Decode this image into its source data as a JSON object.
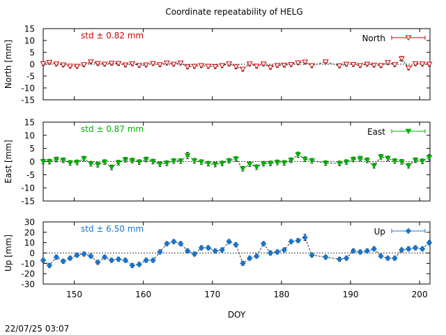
{
  "title": "Coordinate repeatability of HELG",
  "timestamp": "22/07/25 03:07",
  "chart_data": [
    {
      "type": "line",
      "panel": "north",
      "ylabel": "North [mm]",
      "ylim": [
        -15,
        15
      ],
      "yticks": [
        15,
        10,
        5,
        0,
        -5,
        -10,
        -15
      ],
      "xlim": [
        145.5,
        201.5
      ],
      "std_label": "std ± 0.82 mm",
      "legend": "North",
      "legend_position": "top-right",
      "color": "#d40000",
      "marker": "triangle-down-open",
      "x": [
        145.5,
        146.4,
        147.4,
        148.4,
        149.4,
        150.4,
        151.4,
        152.4,
        153.4,
        154.4,
        155.4,
        156.4,
        157.4,
        158.4,
        159.4,
        160.4,
        161.4,
        162.4,
        163.4,
        164.4,
        165.4,
        166.4,
        167.4,
        168.4,
        169.4,
        170.4,
        171.4,
        172.4,
        173.4,
        174.4,
        175.4,
        176.4,
        177.4,
        178.4,
        179.4,
        180.4,
        181.4,
        182.4,
        183.4,
        184.4,
        186.4,
        188.4,
        189.4,
        190.4,
        191.4,
        192.4,
        193.4,
        194.4,
        195.4,
        196.4,
        197.4,
        198.4,
        199.4,
        200.4,
        201.4
      ],
      "values": [
        0.2,
        0.8,
        0.1,
        -0.3,
        -0.8,
        -0.9,
        -0.2,
        1.0,
        0.3,
        0.0,
        0.4,
        0.3,
        -0.3,
        0.2,
        -0.5,
        -0.3,
        0.3,
        -0.2,
        0.5,
        0.0,
        0.5,
        -1.1,
        -0.9,
        -0.6,
        -0.9,
        -1.0,
        -0.6,
        0.1,
        -1.1,
        -2.1,
        0.1,
        -0.8,
        0.1,
        -1.3,
        -0.5,
        -0.4,
        -0.1,
        0.6,
        0.9,
        -0.6,
        1.0,
        -0.7,
        0.0,
        -0.1,
        -0.5,
        0.0,
        -0.4,
        -0.6,
        0.7,
        -0.2,
        2.3,
        -1.6,
        0.2,
        0.1,
        0.0
      ],
      "errors": [
        0.8,
        0.8,
        0.8,
        0.8,
        0.8,
        0.8,
        0.8,
        0.8,
        0.8,
        0.8,
        0.8,
        0.8,
        0.8,
        0.8,
        0.8,
        0.8,
        0.8,
        0.8,
        0.8,
        0.8,
        0.8,
        0.8,
        0.8,
        0.8,
        0.8,
        0.8,
        0.8,
        0.8,
        0.8,
        0.8,
        0.8,
        0.8,
        0.8,
        0.8,
        0.8,
        0.8,
        0.8,
        0.8,
        0.8,
        0.8,
        0.8,
        0.8,
        0.8,
        0.8,
        0.8,
        0.8,
        0.8,
        0.8,
        0.8,
        0.8,
        1.0,
        0.8,
        0.8,
        0.8,
        0.8
      ]
    },
    {
      "type": "line",
      "panel": "east",
      "ylabel": "East [mm]",
      "ylim": [
        -15,
        15
      ],
      "yticks": [
        15,
        10,
        5,
        0,
        -5,
        -10,
        -15
      ],
      "xlim": [
        145.5,
        201.5
      ],
      "std_label": "std ± 0.87 mm",
      "legend": "East",
      "legend_position": "top-right",
      "color": "#00b000",
      "marker": "triangle-down-filled",
      "x": [
        145.5,
        146.4,
        147.4,
        148.4,
        149.4,
        150.4,
        151.4,
        152.4,
        153.4,
        154.4,
        155.4,
        156.4,
        157.4,
        158.4,
        159.4,
        160.4,
        161.4,
        162.4,
        163.4,
        164.4,
        165.4,
        166.4,
        167.4,
        168.4,
        169.4,
        170.4,
        171.4,
        172.4,
        173.4,
        174.4,
        175.4,
        176.4,
        177.4,
        178.4,
        179.4,
        180.4,
        181.4,
        182.4,
        183.4,
        184.4,
        186.4,
        188.4,
        189.4,
        190.4,
        191.4,
        192.4,
        193.4,
        194.4,
        195.4,
        196.4,
        197.4,
        198.4,
        199.4,
        200.4,
        201.4
      ],
      "values": [
        0.0,
        0.0,
        0.8,
        0.5,
        -0.5,
        -0.3,
        1.1,
        -0.8,
        -1.2,
        -0.2,
        -2.2,
        -0.4,
        0.7,
        0.4,
        -0.2,
        0.8,
        0.0,
        -1.0,
        -0.6,
        0.2,
        0.2,
        2.3,
        0.3,
        -0.2,
        -0.8,
        -1.1,
        -0.7,
        0.3,
        1.0,
        -2.7,
        -1.0,
        -2.1,
        -0.8,
        -0.7,
        -0.3,
        -0.5,
        0.5,
        2.6,
        0.9,
        0.3,
        -0.6,
        -0.7,
        -0.2,
        0.8,
        1.1,
        0.5,
        -1.6,
        1.8,
        1.2,
        0.2,
        -0.1,
        -1.6,
        0.5,
        0.1,
        1.6
      ],
      "errors": [
        0.9,
        0.9,
        0.9,
        0.9,
        0.9,
        0.9,
        0.9,
        0.9,
        0.9,
        0.9,
        0.9,
        0.9,
        0.9,
        0.9,
        0.9,
        0.9,
        0.9,
        0.9,
        0.9,
        0.9,
        0.9,
        1.2,
        0.9,
        0.9,
        0.9,
        0.9,
        0.9,
        0.9,
        0.9,
        0.9,
        0.9,
        0.9,
        0.9,
        0.9,
        0.9,
        0.9,
        0.9,
        1.0,
        0.9,
        0.9,
        0.9,
        0.9,
        0.9,
        0.9,
        0.9,
        0.9,
        0.9,
        0.9,
        0.9,
        0.9,
        0.9,
        0.9,
        0.9,
        0.9,
        1.0
      ]
    },
    {
      "type": "line",
      "panel": "up",
      "ylabel": "Up [mm]",
      "ylim": [
        -30,
        30
      ],
      "yticks": [
        30,
        20,
        10,
        0,
        -10,
        -20,
        -30
      ],
      "xlim": [
        145.5,
        201.5
      ],
      "xlabel": "DOY",
      "xticks": [
        150,
        160,
        170,
        180,
        190,
        200
      ],
      "std_label": "std ± 6.50 mm",
      "legend": "Up",
      "legend_position": "top-right",
      "color": "#1874cd",
      "marker": "diamond-filled",
      "x": [
        145.5,
        146.4,
        147.4,
        148.4,
        149.4,
        150.4,
        151.4,
        152.4,
        153.4,
        154.4,
        155.4,
        156.4,
        157.4,
        158.4,
        159.4,
        160.4,
        161.4,
        162.4,
        163.4,
        164.4,
        165.4,
        166.4,
        167.4,
        168.4,
        169.4,
        170.4,
        171.4,
        172.4,
        173.4,
        174.4,
        175.4,
        176.4,
        177.4,
        178.4,
        179.4,
        180.4,
        181.4,
        182.4,
        183.4,
        184.4,
        186.4,
        188.4,
        189.4,
        190.4,
        191.4,
        192.4,
        193.4,
        194.4,
        195.4,
        196.4,
        197.4,
        198.4,
        199.4,
        200.4,
        201.4
      ],
      "values": [
        -7,
        -12,
        -4,
        -8,
        -5,
        -2,
        -1,
        -3,
        -9,
        -4,
        -7,
        -6,
        -7,
        -12,
        -11,
        -7,
        -7,
        1,
        9,
        11,
        9,
        2,
        -1,
        5,
        5,
        2,
        3,
        11,
        8,
        -10,
        -5,
        -3,
        9,
        0,
        1,
        3,
        11,
        12,
        15,
        -2,
        -4,
        -6,
        -5,
        2,
        1,
        2,
        4,
        -3,
        -5,
        -5,
        3,
        4,
        5,
        4,
        10
      ],
      "errors": [
        2,
        2,
        2,
        2,
        2,
        2,
        2,
        2,
        2,
        2,
        2,
        2,
        2,
        2,
        2,
        2,
        2,
        2,
        2,
        2,
        2,
        2,
        2,
        2,
        2,
        2,
        2,
        2,
        2,
        2,
        2,
        2,
        2,
        2,
        2,
        2,
        2,
        2,
        3,
        2,
        2,
        2,
        2,
        2,
        2,
        2,
        2,
        2,
        2,
        2,
        2,
        2,
        2,
        2,
        2
      ]
    }
  ]
}
